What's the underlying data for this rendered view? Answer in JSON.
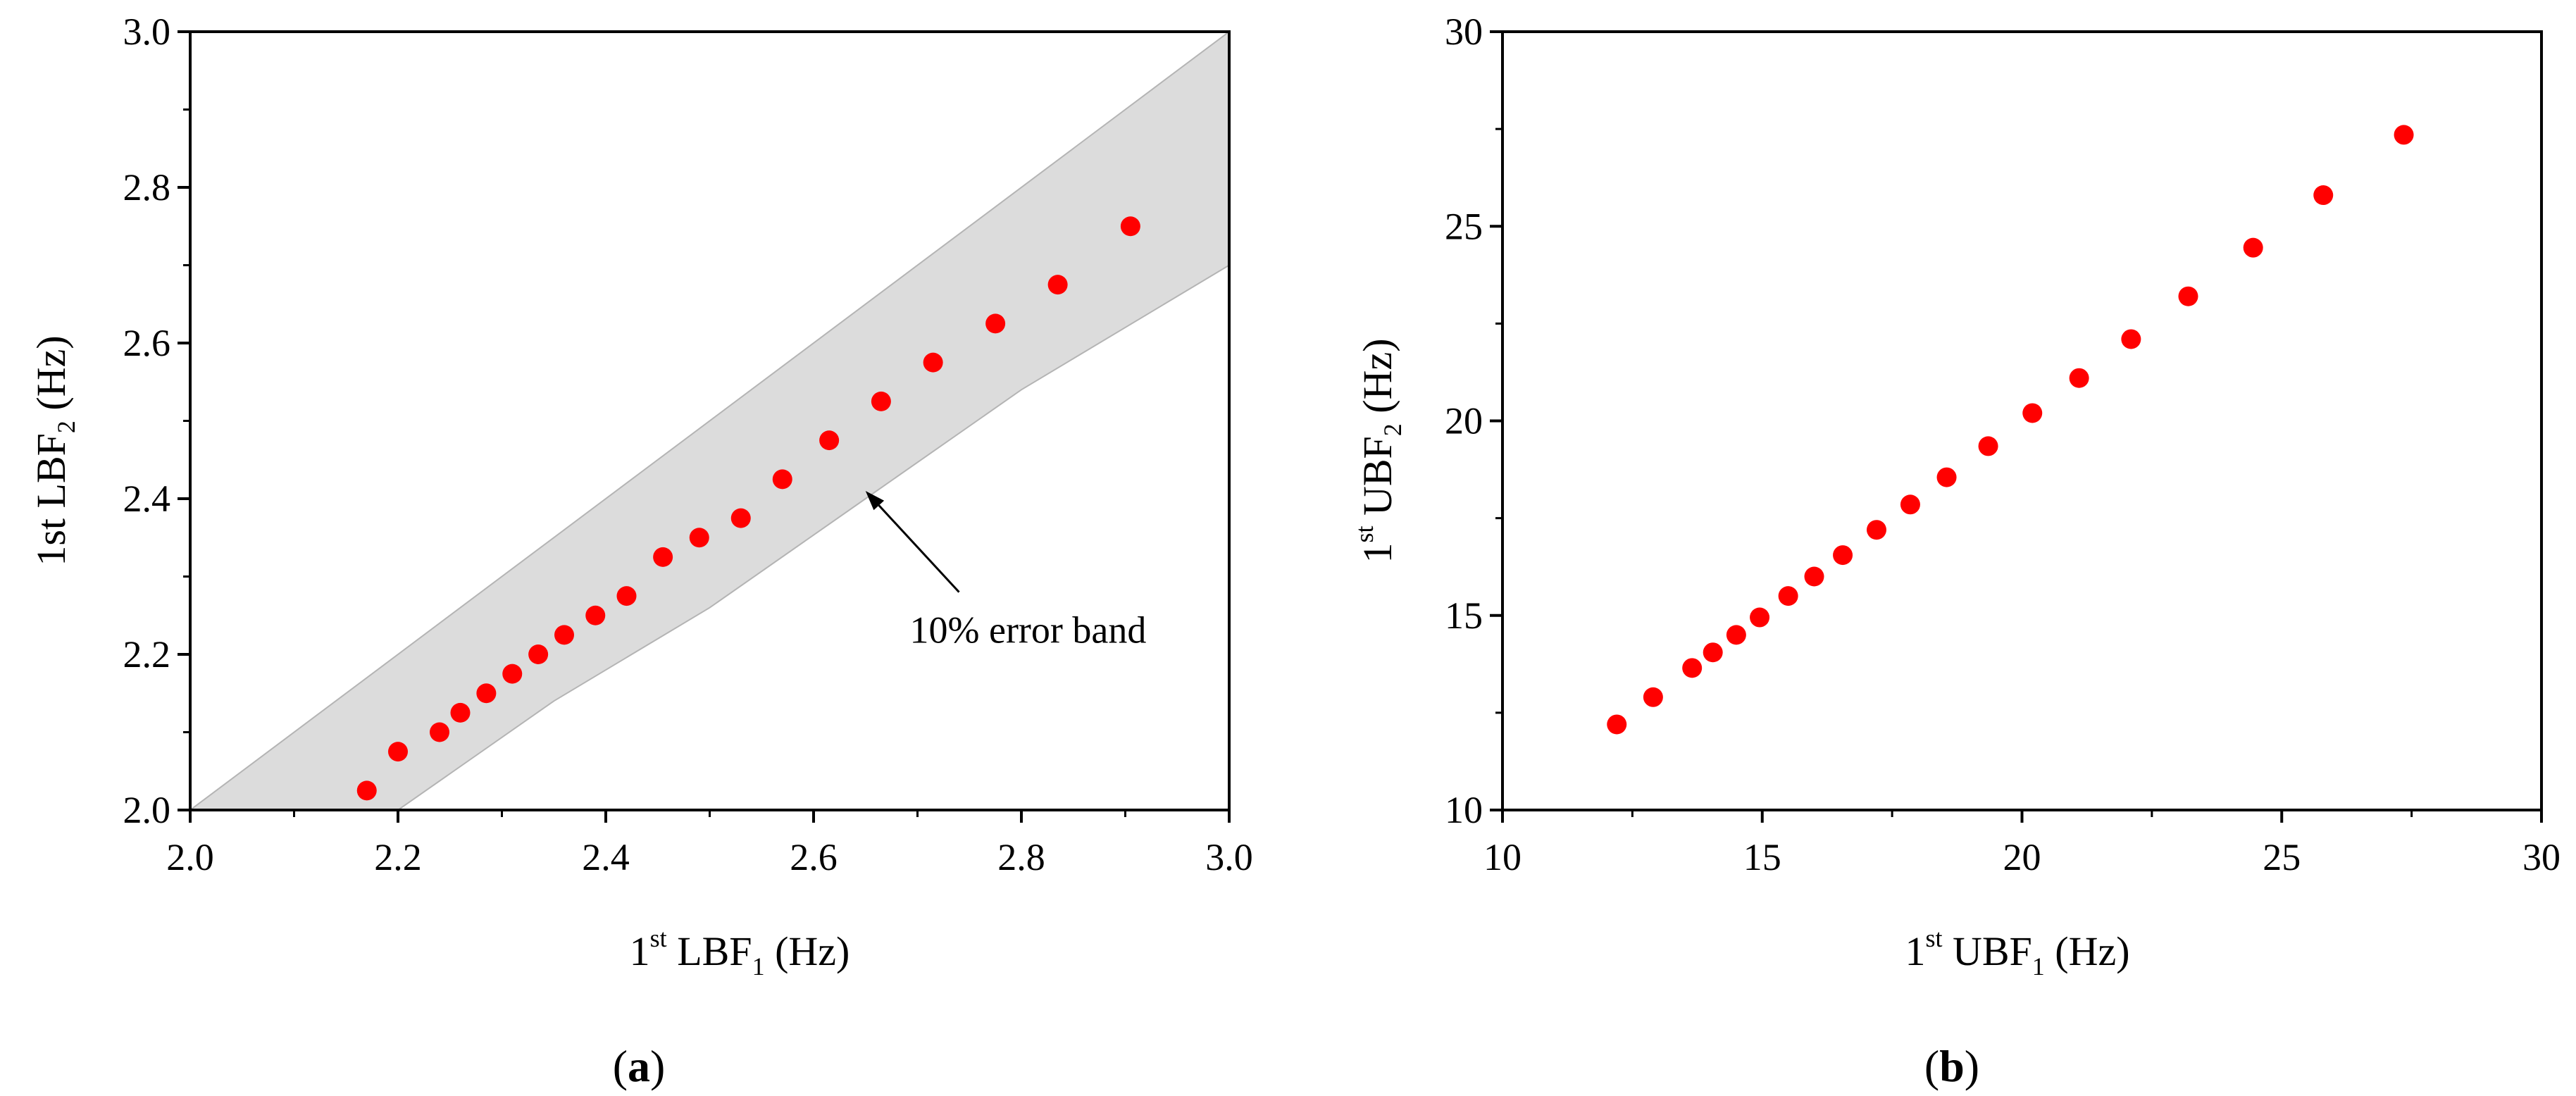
{
  "chart_data": [
    {
      "type": "scatter",
      "panel_label": {
        "open": "(",
        "letter": "a",
        "close": ")"
      },
      "xlabel": {
        "prefix": "1",
        "superscript": "st",
        "main": " LBF",
        "subscript": "1",
        "suffix": " (Hz)"
      },
      "ylabel": {
        "prefix": "1st LBF",
        "subscript": "2",
        "suffix": " (Hz)"
      },
      "xlim": [
        2.0,
        3.0
      ],
      "ylim": [
        2.0,
        3.0
      ],
      "xticks": [
        "2.0",
        "2.2",
        "2.4",
        "2.6",
        "2.8",
        "3.0"
      ],
      "yticks": [
        "2.0",
        "2.2",
        "2.4",
        "2.6",
        "2.8",
        "3.0"
      ],
      "marker_color": "#ff0000",
      "band_color": "#dcdcdc",
      "band": {
        "label": "10% error band",
        "upper": [
          [
            2.0,
            2.0
          ],
          [
            3.0,
            3.0
          ]
        ],
        "lower": [
          [
            2.2,
            2.0
          ],
          [
            2.35,
            2.14
          ],
          [
            2.5,
            2.26
          ],
          [
            2.65,
            2.4
          ],
          [
            2.8,
            2.54
          ],
          [
            3.0,
            2.7
          ]
        ]
      },
      "annotation": {
        "text": "10% error band",
        "arrow_to": [
          2.65,
          2.41
        ],
        "arrow_from": [
          2.74,
          2.28
        ]
      },
      "series": [
        {
          "name": "data",
          "x": [
            2.17,
            2.2,
            2.24,
            2.26,
            2.285,
            2.31,
            2.335,
            2.36,
            2.39,
            2.42,
            2.455,
            2.49,
            2.53,
            2.57,
            2.615,
            2.665,
            2.715,
            2.775,
            2.835,
            2.905
          ],
          "y": [
            2.025,
            2.075,
            2.1,
            2.125,
            2.15,
            2.175,
            2.2,
            2.225,
            2.25,
            2.275,
            2.325,
            2.35,
            2.375,
            2.425,
            2.475,
            2.525,
            2.575,
            2.625,
            2.675,
            2.75
          ]
        }
      ]
    },
    {
      "type": "scatter",
      "panel_label": {
        "open": "(",
        "letter": "b",
        "close": ")"
      },
      "xlabel": {
        "prefix": "1",
        "superscript": "st",
        "main": " UBF",
        "subscript": "1",
        "suffix": " (Hz)"
      },
      "ylabel": {
        "prefix": "1",
        "superscript": "st",
        "main": " UBF",
        "subscript": "2",
        "suffix": " (Hz)"
      },
      "xlim": [
        10,
        30
      ],
      "ylim": [
        10,
        30
      ],
      "xticks": [
        "10",
        "15",
        "20",
        "25",
        "30"
      ],
      "yticks": [
        "10",
        "15",
        "20",
        "25",
        "30"
      ],
      "marker_color": "#ff0000",
      "series": [
        {
          "name": "data",
          "x": [
            12.2,
            12.9,
            13.65,
            14.05,
            14.5,
            14.95,
            15.5,
            16.0,
            16.55,
            17.2,
            17.85,
            18.55,
            19.35,
            20.2,
            21.1,
            22.1,
            23.2,
            24.45,
            25.8,
            27.35
          ],
          "y": [
            12.2,
            12.9,
            13.65,
            14.05,
            14.5,
            14.95,
            15.5,
            16.0,
            16.55,
            17.2,
            17.85,
            18.55,
            19.35,
            20.2,
            21.1,
            22.1,
            23.2,
            24.45,
            25.8,
            27.35
          ]
        }
      ]
    }
  ]
}
